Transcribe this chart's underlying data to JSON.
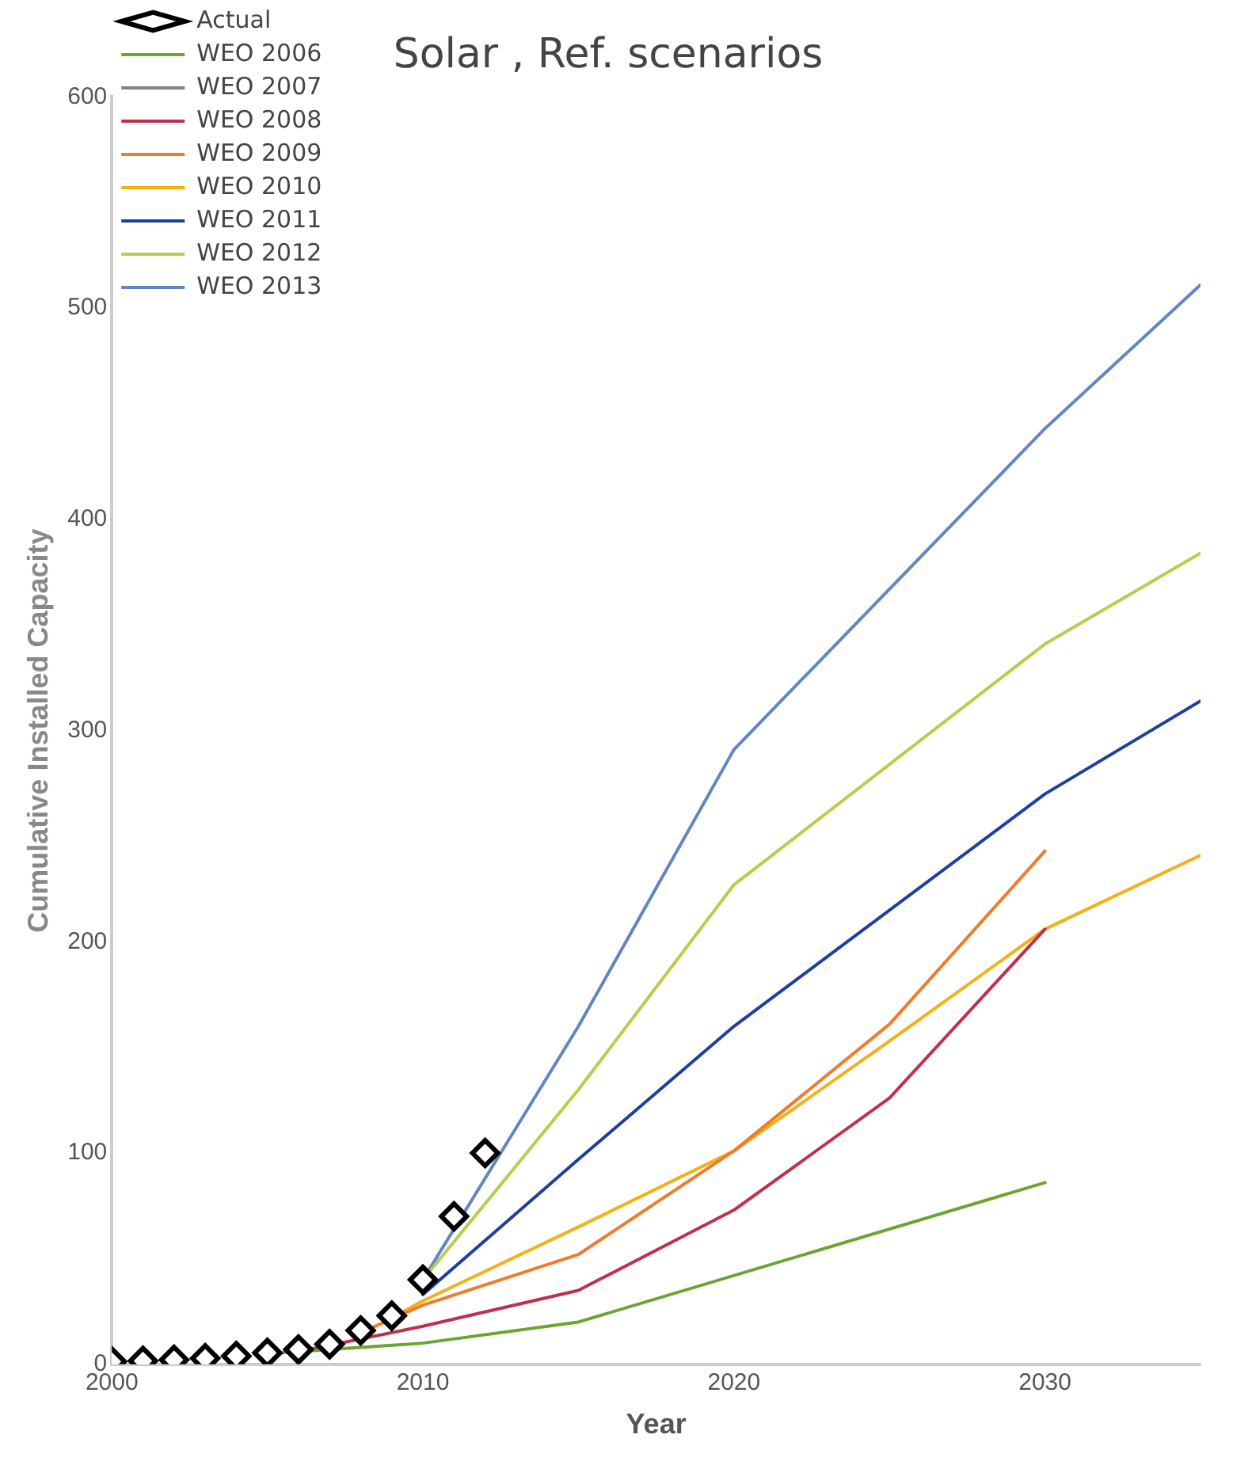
{
  "chart_data": {
    "type": "line",
    "title": "Solar , Ref. scenarios",
    "xlabel": "Year",
    "ylabel": "Cumulative Installed Capacity",
    "xlim": [
      2000,
      2035
    ],
    "xticks": [
      2000,
      2010,
      2020,
      2030
    ],
    "ylim": [
      0,
      600
    ],
    "yticks": [
      0,
      100,
      200,
      300,
      400,
      500,
      600
    ],
    "grid": false,
    "legend": "top left",
    "line_style": "solid",
    "series": [
      {
        "name": "Actual",
        "type": "scatter",
        "marker": "diamond",
        "color": "#000000",
        "x": [
          2000,
          2001,
          2002,
          2003,
          2004,
          2005,
          2006,
          2007,
          2008,
          2009,
          2010,
          2011,
          2012
        ],
        "values": [
          1.3,
          1.6,
          2.1,
          2.8,
          3.9,
          5.4,
          7,
          9.5,
          16,
          23,
          40,
          70,
          100
        ]
      },
      {
        "name": "WEO 2006",
        "color": "#6aa532",
        "x": [
          2005,
          2010,
          2015,
          2030
        ],
        "values": [
          5,
          10,
          20,
          86
        ]
      },
      {
        "name": "WEO 2007",
        "color": "#7f7f7f"
      },
      {
        "name": "WEO 2008",
        "color": "#c0304a",
        "x": [
          2006,
          2010,
          2015,
          2020,
          2025,
          2030
        ],
        "values": [
          6,
          18,
          35,
          73,
          126,
          206
        ]
      },
      {
        "name": "WEO 2009",
        "color": "#f07b2a",
        "x": [
          2008,
          2010,
          2015,
          2020,
          2025,
          2030
        ],
        "values": [
          15,
          28,
          52,
          101,
          161,
          243
        ]
      },
      {
        "name": "WEO 2010",
        "color": "#f5b015",
        "x": [
          2009,
          2010,
          2015,
          2020,
          2025,
          2030,
          2035
        ],
        "values": [
          22,
          30,
          65,
          101,
          153,
          206,
          241
        ]
      },
      {
        "name": "WEO 2011",
        "color": "#1f3fa0",
        "x": [
          2010,
          2015,
          2020,
          2030,
          2035
        ],
        "values": [
          33,
          97,
          160,
          270,
          314
        ]
      },
      {
        "name": "WEO 2012",
        "color": "#b5cf4a",
        "x": [
          2010,
          2015,
          2020,
          2030,
          2035
        ],
        "values": [
          40,
          130,
          227,
          341,
          384
        ]
      },
      {
        "name": "WEO 2013",
        "color": "#6485c4",
        "x": [
          2010,
          2015,
          2020,
          2030,
          2035
        ],
        "values": [
          40,
          160,
          291,
          443,
          511
        ]
      }
    ]
  }
}
